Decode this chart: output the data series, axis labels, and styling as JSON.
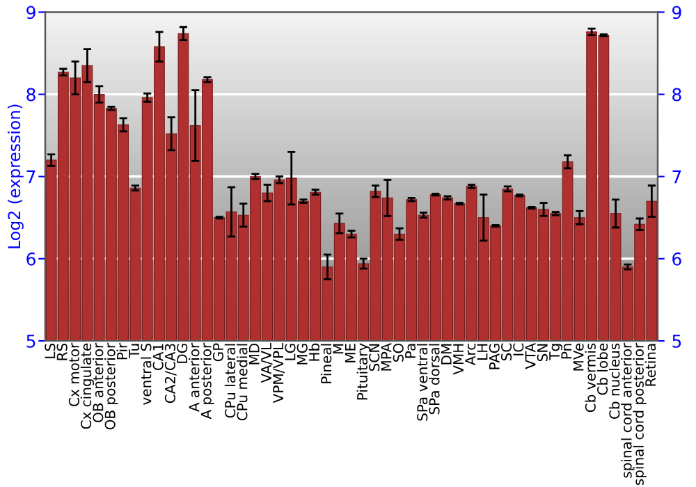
{
  "chart_data": {
    "type": "bar",
    "ylabel": "Log2 (expression)",
    "categories": [
      "LS",
      "RS",
      "Cx motor",
      "Cx cingulate",
      "OB anterior",
      "OB posterior",
      "Pir",
      "Tu",
      "ventral S",
      "CA1",
      "CA2/CA3",
      "DG",
      "A anterior",
      "A posterior",
      "GP",
      "CPu lateral",
      "CPu medial",
      "MD",
      "VA/VL",
      "VPM/VPL",
      "LG",
      "MG",
      "Hb",
      "Pineal",
      "M",
      "ME",
      "Pituitary",
      "SCN",
      "MPA",
      "SO",
      "Pa",
      "SPa ventral",
      "SPa dorsal",
      "DM",
      "VMH",
      "Arc",
      "LH",
      "PAG",
      "SC",
      "IC",
      "VTA",
      "SN",
      "Tg",
      "Pn",
      "MVe",
      "Cb vermis",
      "Cb lobe",
      "Cb nucleus",
      "spinal cord anterior",
      "spinal cord posterior",
      "Retina"
    ],
    "series": [
      {
        "color": "#b03030",
        "values": [
          7.2,
          8.27,
          8.2,
          8.35,
          8.0,
          7.83,
          7.63,
          6.86,
          7.96,
          8.58,
          7.52,
          8.74,
          7.62,
          8.18,
          6.5,
          6.57,
          6.53,
          7.0,
          6.8,
          6.96,
          6.98,
          6.7,
          6.81,
          5.9,
          6.43,
          6.3,
          5.94,
          6.82,
          6.74,
          6.3,
          6.72,
          6.53,
          6.78,
          6.74,
          6.67,
          6.88,
          6.5,
          6.4,
          6.85,
          6.77,
          6.62,
          6.6,
          6.55,
          7.18,
          6.5,
          8.76,
          8.72,
          6.55,
          5.9,
          6.42,
          6.7
        ],
        "errors": [
          0.07,
          0.04,
          0.2,
          0.2,
          0.1,
          0.02,
          0.08,
          0.03,
          0.05,
          0.18,
          0.2,
          0.08,
          0.43,
          0.03,
          0.01,
          0.3,
          0.14,
          0.03,
          0.1,
          0.04,
          0.32,
          0.02,
          0.03,
          0.15,
          0.12,
          0.04,
          0.06,
          0.07,
          0.22,
          0.07,
          0.02,
          0.03,
          0.01,
          0.02,
          0.01,
          0.02,
          0.28,
          0.01,
          0.03,
          0.01,
          0.01,
          0.08,
          0.02,
          0.08,
          0.08,
          0.04,
          0.01,
          0.17,
          0.03,
          0.07,
          0.19
        ]
      }
    ],
    "ylim": [
      5,
      9
    ],
    "yticks": [
      5,
      6,
      7,
      8,
      9
    ],
    "y2lim": [
      5,
      9
    ],
    "y2ticks": [
      5,
      6,
      7,
      8,
      9
    ],
    "grid": "y"
  }
}
